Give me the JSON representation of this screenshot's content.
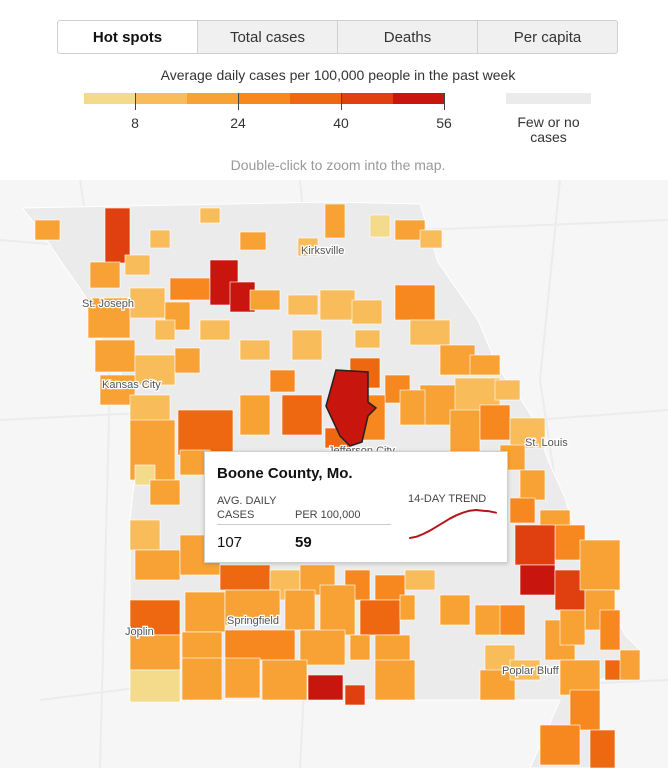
{
  "tabs": [
    {
      "label": "Hot spots",
      "active": true
    },
    {
      "label": "Total cases",
      "active": false
    },
    {
      "label": "Deaths",
      "active": false
    },
    {
      "label": "Per capita",
      "active": false
    }
  ],
  "legend": {
    "title": "Average daily cases per 100,000 people in the past week",
    "colors": [
      "#f3db8b",
      "#f9bc5a",
      "#f8a236",
      "#f7871f",
      "#ee6812",
      "#e0400f",
      "#c8150e"
    ],
    "ticks": [
      "8",
      "24",
      "40",
      "56"
    ],
    "none_label_line1": "Few or no",
    "none_label_line2": "cases",
    "none_color": "#ebebeb"
  },
  "hint": "Double-click to zoom into the map.",
  "cities": [
    {
      "name": "Kirksville"
    },
    {
      "name": "St. Joseph"
    },
    {
      "name": "Kansas City"
    },
    {
      "name": "St. Louis"
    },
    {
      "name": "Jefferson City"
    },
    {
      "name": "Springfield"
    },
    {
      "name": "Joplin"
    },
    {
      "name": "Poplar Bluff"
    }
  ],
  "tooltip": {
    "title": "Boone County, Mo.",
    "col1_line1": "AVG. DAILY",
    "col1_line2": "CASES",
    "col2": "PER 100,000",
    "trend_label": "14-DAY TREND",
    "cases": "107",
    "per_100k": "59",
    "trend_values": [
      20,
      22,
      26,
      31,
      37,
      43,
      49,
      54,
      58,
      61,
      62,
      61,
      60,
      58
    ]
  }
}
